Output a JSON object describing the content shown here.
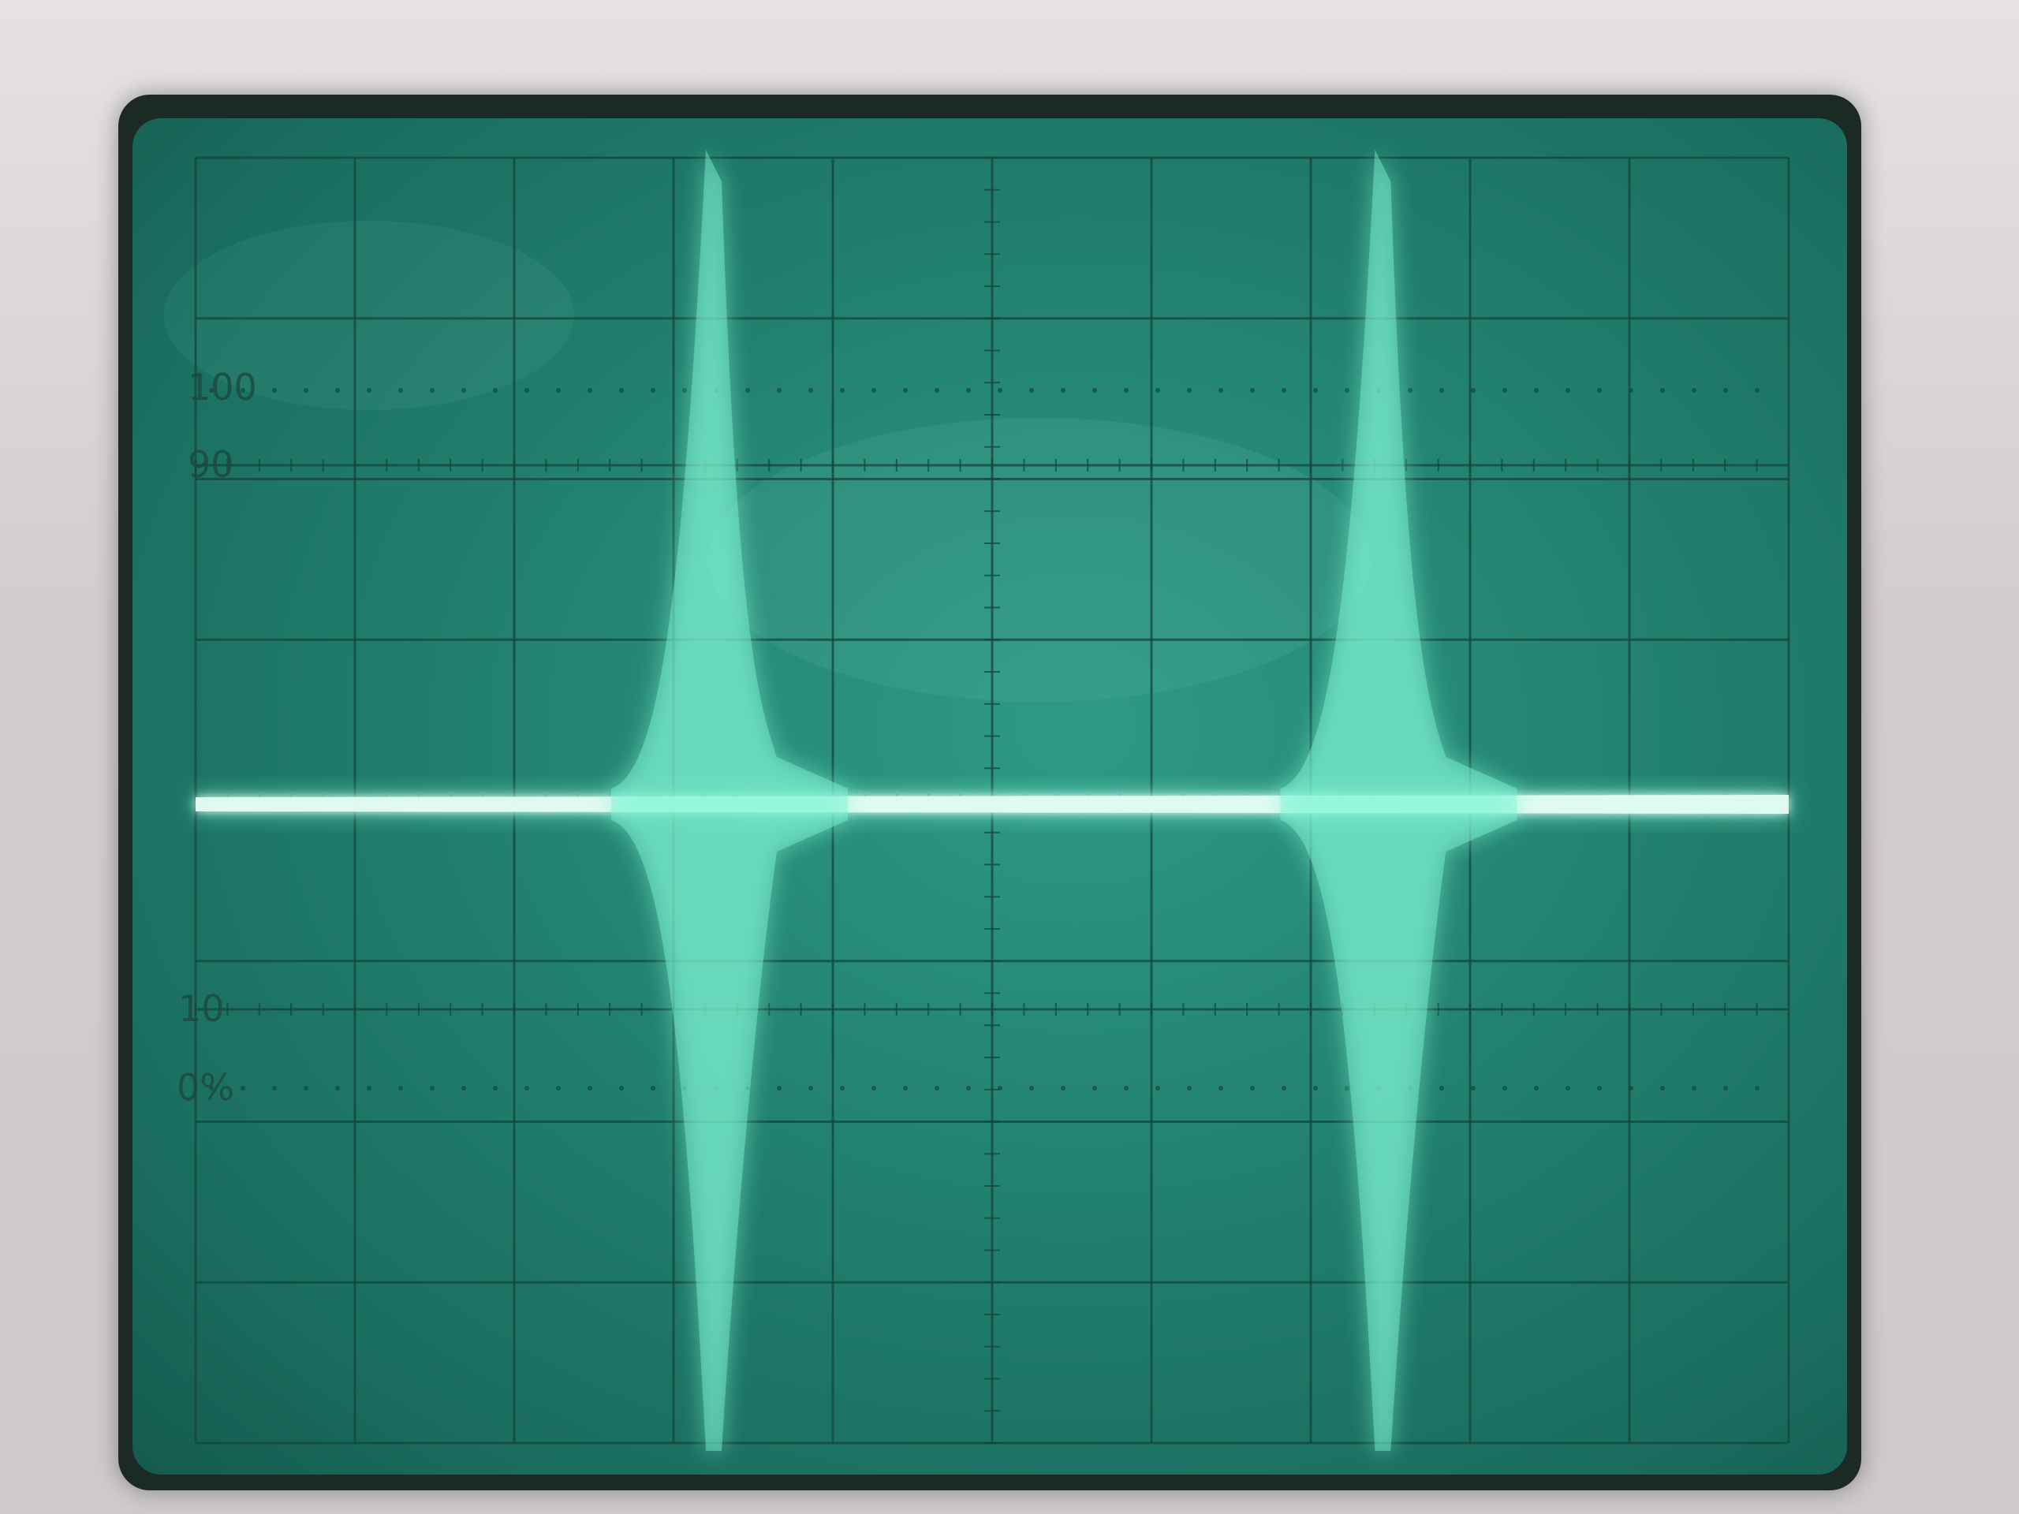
{
  "graticule_labels": {
    "l100": "100",
    "l90": "90",
    "l10": "10",
    "l0": "0%"
  },
  "colors": {
    "screen": "#22806f",
    "grid": "#14463d",
    "trace": "#7ff5d2",
    "trace_core": "#e8fff6",
    "bezel": "#d2cdcf"
  }
}
